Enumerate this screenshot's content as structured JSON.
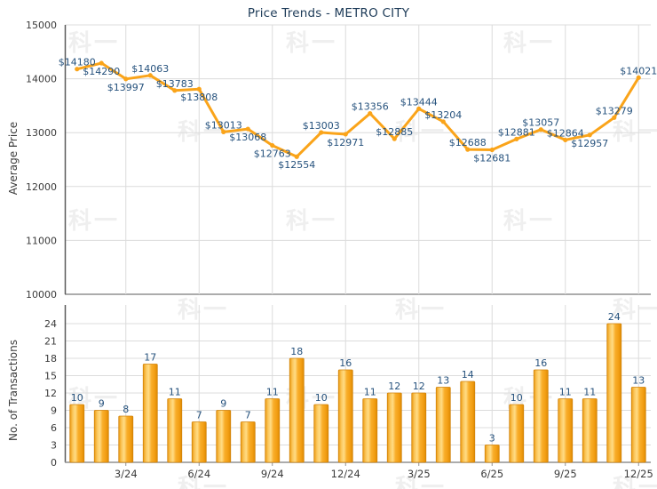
{
  "title": "Price Trends - METRO CITY",
  "watermark_text": "科一",
  "colors": {
    "title": "#1C3A57",
    "data_label": "#26527D",
    "tick_label": "#3B3B3B",
    "axis_title": "#3B3B3B",
    "line": "#FAA41A",
    "marker": "#FAA41A",
    "grid": "#DCDCDC",
    "spine": "#5A5A5A",
    "axis_mid": "#919191",
    "bar_border": "#D1830A",
    "bar_gradient": [
      "#EC9A10",
      "#FBC75C",
      "#FFDC85",
      "#F9AE2B",
      "#F29E14",
      "#DE8B02"
    ],
    "watermark": "#EFEFEF"
  },
  "chart_data": [
    {
      "type": "line",
      "title": "Price Trends - METRO CITY",
      "ylabel": "Average Price",
      "ylim": [
        10000,
        15000
      ],
      "yticks": [
        10000,
        11000,
        12000,
        13000,
        14000,
        15000
      ],
      "n_points": 24,
      "x_tick_labels": [
        "3/24",
        "6/24",
        "9/24",
        "12/24",
        "3/25",
        "6/25",
        "9/25",
        "12/25"
      ],
      "x_tick_positions": [
        3,
        6,
        9,
        12,
        15,
        18,
        21,
        24
      ],
      "values": [
        14180,
        14290,
        13997,
        14063,
        13783,
        13808,
        13013,
        13068,
        12763,
        12554,
        13003,
        12971,
        13356,
        12885,
        13444,
        13204,
        12688,
        12681,
        12881,
        13057,
        12864,
        12957,
        13279,
        14021
      ],
      "point_labels": [
        "$14180",
        "$14290",
        "$13997",
        "$14063",
        "$13783",
        "$13808",
        "$13013",
        "$13068",
        "$12763",
        "$12554",
        "$13003",
        "$12971",
        "$13356",
        "$12885",
        "$13444",
        "$13204",
        "$12688",
        "$12681",
        "$12881",
        "$13057",
        "$12864",
        "$12957",
        "$13279",
        "$14021"
      ],
      "label_sides": [
        "above",
        "below",
        "below",
        "above",
        "above",
        "below",
        "above",
        "below",
        "below",
        "below",
        "above",
        "below",
        "above",
        "above",
        "above",
        "above",
        "above",
        "below",
        "above",
        "above",
        "above",
        "below",
        "above",
        "above"
      ],
      "grid": true,
      "legend": "none"
    },
    {
      "type": "bar",
      "ylabel": "No. of Transactions",
      "ylim": [
        0,
        24
      ],
      "yticks": [
        0,
        3,
        6,
        9,
        12,
        15,
        18,
        21,
        24
      ],
      "n_points": 24,
      "x_tick_labels": [
        "3/24",
        "6/24",
        "9/24",
        "12/24",
        "3/25",
        "6/25",
        "9/25",
        "12/25"
      ],
      "x_tick_positions": [
        3,
        6,
        9,
        12,
        15,
        18,
        21,
        24
      ],
      "values": [
        10,
        9,
        8,
        17,
        11,
        7,
        9,
        7,
        11,
        18,
        10,
        16,
        11,
        12,
        12,
        13,
        14,
        3,
        10,
        16,
        11,
        11,
        24,
        13
      ],
      "grid": true,
      "legend": "none"
    }
  ]
}
